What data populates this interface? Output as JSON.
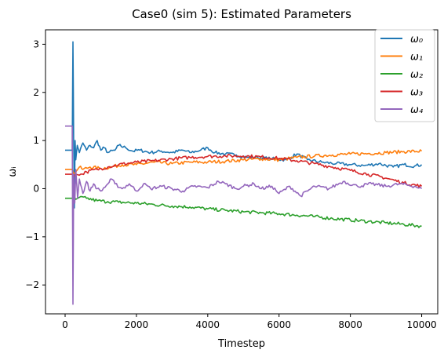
{
  "chart_data": {
    "type": "line",
    "title": "Case0 (sim 5): Estimated Parameters",
    "xlabel": "Timestep",
    "ylabel": "ωᵢ",
    "xlim": [
      -550,
      10450
    ],
    "ylim": [
      -2.6,
      3.3
    ],
    "x_ticks": [
      0,
      2000,
      4000,
      6000,
      8000,
      10000
    ],
    "x_tick_labels": [
      "0",
      "2000",
      "4000",
      "6000",
      "8000",
      "10000"
    ],
    "y_ticks": [
      -2,
      -1,
      0,
      1,
      2,
      3
    ],
    "y_tick_labels": [
      "−2",
      "−1",
      "0",
      "1",
      "2",
      "3"
    ],
    "grid": false,
    "legend_position": "top-right",
    "series": [
      {
        "name": "ω₀",
        "color": "#1f77b4",
        "initial": 0.8,
        "points": [
          [
            200,
            0.8
          ],
          [
            220,
            3.05
          ],
          [
            240,
            1.0
          ],
          [
            260,
            -0.4
          ],
          [
            280,
            1.0
          ],
          [
            300,
            0.6
          ],
          [
            340,
            0.9
          ],
          [
            400,
            0.75
          ],
          [
            500,
            0.95
          ],
          [
            600,
            0.8
          ],
          [
            700,
            0.9
          ],
          [
            800,
            0.85
          ],
          [
            900,
            1.0
          ],
          [
            1000,
            0.8
          ],
          [
            1100,
            0.85
          ],
          [
            1200,
            0.75
          ],
          [
            1400,
            0.8
          ],
          [
            1500,
            0.9
          ],
          [
            1700,
            0.85
          ],
          [
            1900,
            0.78
          ],
          [
            2100,
            0.8
          ],
          [
            2400,
            0.75
          ],
          [
            2700,
            0.78
          ],
          [
            3000,
            0.75
          ],
          [
            3300,
            0.8
          ],
          [
            3500,
            0.75
          ],
          [
            3800,
            0.8
          ],
          [
            4000,
            0.85
          ],
          [
            4200,
            0.75
          ],
          [
            4500,
            0.72
          ],
          [
            4800,
            0.7
          ],
          [
            5100,
            0.65
          ],
          [
            5400,
            0.65
          ],
          [
            5800,
            0.62
          ],
          [
            6200,
            0.6
          ],
          [
            6500,
            0.72
          ],
          [
            6800,
            0.6
          ],
          [
            7200,
            0.55
          ],
          [
            7600,
            0.52
          ],
          [
            8000,
            0.5
          ],
          [
            8400,
            0.48
          ],
          [
            8800,
            0.52
          ],
          [
            9200,
            0.45
          ],
          [
            9500,
            0.5
          ],
          [
            9800,
            0.47
          ],
          [
            10000,
            0.5
          ]
        ]
      },
      {
        "name": "ω₁",
        "color": "#ff7f0e",
        "initial": 0.4,
        "points": [
          [
            200,
            0.4
          ],
          [
            240,
            0.3
          ],
          [
            300,
            0.35
          ],
          [
            400,
            0.45
          ],
          [
            500,
            0.4
          ],
          [
            700,
            0.45
          ],
          [
            1000,
            0.42
          ],
          [
            1300,
            0.45
          ],
          [
            1600,
            0.5
          ],
          [
            2000,
            0.5
          ],
          [
            2500,
            0.55
          ],
          [
            3000,
            0.52
          ],
          [
            3500,
            0.55
          ],
          [
            4000,
            0.55
          ],
          [
            4500,
            0.57
          ],
          [
            5000,
            0.6
          ],
          [
            5500,
            0.62
          ],
          [
            6000,
            0.6
          ],
          [
            6500,
            0.65
          ],
          [
            7000,
            0.68
          ],
          [
            7500,
            0.7
          ],
          [
            8000,
            0.72
          ],
          [
            8500,
            0.73
          ],
          [
            9000,
            0.75
          ],
          [
            9500,
            0.77
          ],
          [
            10000,
            0.78
          ]
        ]
      },
      {
        "name": "ω₂",
        "color": "#2ca02c",
        "initial": -0.2,
        "points": [
          [
            200,
            -0.2
          ],
          [
            240,
            -0.15
          ],
          [
            300,
            -0.22
          ],
          [
            400,
            -0.18
          ],
          [
            600,
            -0.2
          ],
          [
            900,
            -0.25
          ],
          [
            1200,
            -0.27
          ],
          [
            1500,
            -0.28
          ],
          [
            2000,
            -0.3
          ],
          [
            2500,
            -0.33
          ],
          [
            3000,
            -0.36
          ],
          [
            3500,
            -0.38
          ],
          [
            4000,
            -0.42
          ],
          [
            4500,
            -0.45
          ],
          [
            5000,
            -0.48
          ],
          [
            5500,
            -0.5
          ],
          [
            6000,
            -0.52
          ],
          [
            6500,
            -0.55
          ],
          [
            7000,
            -0.58
          ],
          [
            7500,
            -0.62
          ],
          [
            8000,
            -0.65
          ],
          [
            8500,
            -0.68
          ],
          [
            9000,
            -0.71
          ],
          [
            9500,
            -0.74
          ],
          [
            10000,
            -0.78
          ]
        ]
      },
      {
        "name": "ω₃",
        "color": "#d62728",
        "initial": 0.3,
        "points": [
          [
            200,
            0.3
          ],
          [
            240,
            0.25
          ],
          [
            300,
            0.3
          ],
          [
            400,
            0.28
          ],
          [
            600,
            0.35
          ],
          [
            900,
            0.4
          ],
          [
            1200,
            0.45
          ],
          [
            1500,
            0.5
          ],
          [
            2000,
            0.55
          ],
          [
            2500,
            0.58
          ],
          [
            3000,
            0.62
          ],
          [
            3500,
            0.65
          ],
          [
            4000,
            0.67
          ],
          [
            4500,
            0.68
          ],
          [
            5000,
            0.68
          ],
          [
            5500,
            0.66
          ],
          [
            6000,
            0.63
          ],
          [
            6500,
            0.58
          ],
          [
            7000,
            0.52
          ],
          [
            7500,
            0.45
          ],
          [
            8000,
            0.38
          ],
          [
            8500,
            0.3
          ],
          [
            9000,
            0.22
          ],
          [
            9500,
            0.12
          ],
          [
            10000,
            0.05
          ]
        ]
      },
      {
        "name": "ω₄",
        "color": "#9467bd",
        "initial": 1.3,
        "points": [
          [
            200,
            1.3
          ],
          [
            220,
            -2.4
          ],
          [
            240,
            0.3
          ],
          [
            270,
            -0.3
          ],
          [
            300,
            0.4
          ],
          [
            350,
            -0.2
          ],
          [
            400,
            0.2
          ],
          [
            500,
            -0.1
          ],
          [
            600,
            0.15
          ],
          [
            700,
            -0.05
          ],
          [
            800,
            0.1
          ],
          [
            900,
            0.0
          ],
          [
            1000,
            -0.05
          ],
          [
            1200,
            0.1
          ],
          [
            1300,
            0.2
          ],
          [
            1400,
            0.1
          ],
          [
            1600,
            0.0
          ],
          [
            1800,
            0.1
          ],
          [
            2000,
            -0.05
          ],
          [
            2200,
            0.1
          ],
          [
            2400,
            0.0
          ],
          [
            2700,
            0.05
          ],
          [
            3000,
            0.0
          ],
          [
            3300,
            -0.05
          ],
          [
            3600,
            0.05
          ],
          [
            4000,
            0.02
          ],
          [
            4300,
            0.15
          ],
          [
            4500,
            0.1
          ],
          [
            4800,
            0.0
          ],
          [
            5000,
            0.05
          ],
          [
            5300,
            0.1
          ],
          [
            5500,
            0.0
          ],
          [
            5800,
            0.05
          ],
          [
            6000,
            -0.1
          ],
          [
            6300,
            0.05
          ],
          [
            6600,
            -0.15
          ],
          [
            7000,
            0.05
          ],
          [
            7400,
            0.0
          ],
          [
            7800,
            0.15
          ],
          [
            8200,
            0.05
          ],
          [
            8600,
            0.1
          ],
          [
            9000,
            0.05
          ],
          [
            9400,
            0.1
          ],
          [
            9800,
            0.05
          ],
          [
            10000,
            0.0
          ]
        ]
      }
    ]
  }
}
